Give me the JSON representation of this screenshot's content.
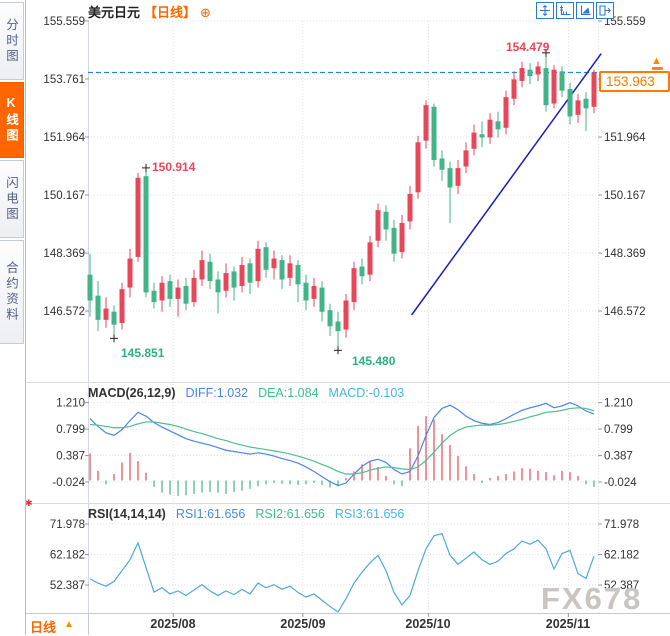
{
  "header": {
    "symbol": "美元日元",
    "period_tag": "【日线】",
    "add_icon": "⊕"
  },
  "sidebar": {
    "tabs": [
      {
        "label": "分时图",
        "active": false
      },
      {
        "label": "K线图",
        "active": true
      },
      {
        "label": "闪电图",
        "active": false
      },
      {
        "label": "合约资料",
        "active": false
      }
    ]
  },
  "toolbar": {
    "icons": [
      "crosshair",
      "axis-scale",
      "chart-zoom",
      "exit"
    ]
  },
  "price_badge": {
    "value": "153.963",
    "arrow": "▲"
  },
  "annotations": {
    "high_aug": "150.914",
    "low_aug": "145.851",
    "low_oct": "145.480",
    "high_nov": "154.479"
  },
  "macd_header": {
    "name": "MACD(26,12,9)",
    "diff": "DIFF:1.032",
    "dea": "DEA:1.084",
    "macd": "MACD:-0.103"
  },
  "rsi_header": {
    "name": "RSI(14,14,14)",
    "rsi1": "RSI1:61.656",
    "rsi2": "RSI2:61.656",
    "rsi3": "RSI3:61.656"
  },
  "footer": {
    "period_label": "日线",
    "expand_icon": "▲",
    "watermark": "FX678"
  },
  "colors": {
    "up": "#e8475a",
    "down": "#43b388",
    "orange": "#ff6600",
    "dashed_price_line": "#1f87e8",
    "trendline": "#1d1dc0",
    "diff_line": "#4a86e8",
    "dea_line": "#4fbe92",
    "rsi_line": "#4fa8dc",
    "grid": "#dbe0ea",
    "axis_text": "#333333",
    "annotation_high": "#e8475a",
    "annotation_low": "#2fae85",
    "watermark": "#c9c5c0",
    "sidebar_active_bg": "#ff6600"
  },
  "chart_data": [
    {
      "type": "candlestick",
      "title": "美元日元 日线",
      "x_labels": [
        "2025/08",
        "2025/09",
        "2025/10",
        "2025/11"
      ],
      "y_ticks": [
        "155.559",
        "153.761",
        "151.964",
        "150.167",
        "148.369",
        "146.572"
      ],
      "current_price": 153.963,
      "open": [
        147.7,
        147.05,
        146.3,
        146.55,
        146.2,
        147.3,
        148.25,
        150.75,
        147.2,
        146.9,
        147.5,
        146.95,
        147.35,
        146.85,
        147.55,
        148.1,
        147.55,
        147.2,
        147.8,
        147.35,
        148.05,
        147.5,
        148.55,
        147.9,
        148.15,
        147.6,
        148.0,
        147.45,
        146.95,
        147.3,
        146.6,
        146.25,
        146.0,
        146.85,
        147.95,
        147.7,
        148.75,
        149.65,
        149.15,
        148.4,
        149.35,
        150.25,
        151.85,
        152.9,
        151.3,
        151.0,
        150.45,
        151.05,
        151.6,
        152.05,
        151.95,
        152.45,
        152.25,
        153.15,
        153.7,
        154.05,
        153.9,
        154.1,
        153.0,
        154.0,
        153.45,
        152.65,
        153.15,
        152.9
      ],
      "close": [
        146.9,
        146.3,
        146.65,
        146.15,
        147.25,
        148.2,
        150.7,
        147.15,
        146.85,
        147.45,
        146.95,
        147.3,
        146.8,
        147.6,
        148.15,
        147.5,
        147.15,
        147.75,
        147.3,
        148.0,
        147.45,
        148.5,
        147.85,
        148.2,
        147.55,
        148.05,
        147.4,
        146.9,
        147.35,
        146.55,
        146.1,
        145.95,
        146.9,
        147.9,
        147.65,
        148.7,
        149.7,
        149.1,
        148.35,
        149.3,
        150.2,
        151.8,
        152.95,
        151.25,
        150.95,
        150.4,
        151.0,
        151.55,
        152.1,
        151.95,
        152.5,
        152.2,
        153.2,
        153.75,
        154.1,
        153.85,
        154.15,
        152.95,
        154.05,
        153.4,
        152.6,
        153.1,
        152.85,
        153.963
      ],
      "high": [
        148.35,
        147.5,
        147.0,
        146.75,
        147.45,
        148.5,
        150.85,
        150.914,
        147.45,
        147.65,
        147.7,
        147.55,
        147.6,
        147.85,
        148.45,
        148.35,
        147.8,
        148.05,
        147.95,
        148.25,
        148.2,
        148.75,
        148.7,
        148.45,
        148.3,
        148.3,
        148.15,
        147.7,
        147.6,
        147.5,
        146.8,
        146.55,
        147.1,
        148.1,
        148.2,
        148.9,
        149.9,
        149.85,
        149.4,
        149.55,
        150.45,
        152.0,
        153.1,
        153.0,
        151.55,
        151.2,
        151.25,
        151.8,
        152.35,
        152.45,
        152.7,
        152.75,
        153.4,
        154.0,
        154.3,
        154.25,
        154.3,
        154.479,
        154.2,
        154.15,
        153.65,
        153.3,
        153.35,
        154.05
      ],
      "low": [
        146.4,
        145.95,
        146.05,
        145.851,
        146.0,
        147.0,
        148.1,
        147.0,
        146.65,
        146.55,
        146.7,
        146.4,
        146.6,
        146.7,
        147.35,
        147.25,
        146.5,
        147.0,
        146.9,
        147.15,
        147.1,
        147.3,
        147.6,
        147.55,
        147.25,
        147.35,
        146.85,
        146.6,
        146.7,
        146.25,
        145.8,
        145.48,
        145.75,
        146.6,
        147.4,
        147.5,
        148.55,
        148.75,
        148.1,
        148.2,
        149.1,
        150.05,
        151.6,
        151.05,
        150.6,
        149.3,
        150.2,
        150.85,
        151.4,
        151.65,
        151.75,
        151.95,
        152.05,
        152.95,
        153.5,
        153.6,
        153.7,
        152.75,
        152.85,
        153.2,
        152.35,
        152.4,
        152.15,
        152.7
      ],
      "marks": [
        {
          "index": 3,
          "price": 145.851,
          "dir": "low"
        },
        {
          "index": 7,
          "price": 150.914,
          "dir": "high"
        },
        {
          "index": 31,
          "price": 145.48,
          "dir": "low"
        },
        {
          "index": 57,
          "price": 154.479,
          "dir": "high"
        }
      ],
      "trendline": {
        "from_index": 40.2,
        "from_price": 146.45,
        "to_index": 63.9,
        "to_price": 154.55
      }
    },
    {
      "type": "macd",
      "params": "26,12,9",
      "y_ticks": [
        "1.210",
        "0.799",
        "0.387",
        "-0.024"
      ],
      "current": {
        "diff": 1.032,
        "dea": 1.084,
        "macd": -0.103
      },
      "diff": [
        0.96,
        0.84,
        0.74,
        0.7,
        0.79,
        0.93,
        1.06,
        1.0,
        0.9,
        0.83,
        0.77,
        0.71,
        0.65,
        0.61,
        0.58,
        0.55,
        0.51,
        0.47,
        0.45,
        0.43,
        0.41,
        0.43,
        0.41,
        0.38,
        0.34,
        0.31,
        0.27,
        0.21,
        0.14,
        0.06,
        -0.02,
        -0.08,
        -0.04,
        0.1,
        0.22,
        0.3,
        0.33,
        0.28,
        0.17,
        0.1,
        0.14,
        0.38,
        0.7,
        0.98,
        1.12,
        1.17,
        1.1,
        1.0,
        0.93,
        0.89,
        0.87,
        0.9,
        0.96,
        1.03,
        1.09,
        1.13,
        1.16,
        1.2,
        1.13,
        1.16,
        1.21,
        1.16,
        1.08,
        1.032
      ],
      "dea": [
        0.87,
        0.86,
        0.84,
        0.82,
        0.82,
        0.84,
        0.88,
        0.91,
        0.91,
        0.89,
        0.87,
        0.84,
        0.8,
        0.76,
        0.73,
        0.69,
        0.65,
        0.62,
        0.58,
        0.55,
        0.52,
        0.5,
        0.48,
        0.46,
        0.44,
        0.41,
        0.38,
        0.34,
        0.3,
        0.25,
        0.2,
        0.14,
        0.1,
        0.1,
        0.12,
        0.16,
        0.19,
        0.21,
        0.2,
        0.18,
        0.17,
        0.21,
        0.31,
        0.44,
        0.58,
        0.7,
        0.78,
        0.83,
        0.85,
        0.86,
        0.86,
        0.87,
        0.89,
        0.92,
        0.95,
        0.99,
        1.02,
        1.06,
        1.07,
        1.09,
        1.12,
        1.13,
        1.12,
        1.084
      ],
      "hist": [
        0.42,
        0.15,
        -0.06,
        0.1,
        0.28,
        0.43,
        0.3,
        0.12,
        -0.1,
        -0.19,
        -0.22,
        -0.24,
        -0.23,
        -0.21,
        -0.19,
        -0.18,
        -0.19,
        -0.21,
        -0.18,
        -0.16,
        -0.13,
        -0.09,
        -0.06,
        -0.04,
        -0.05,
        -0.06,
        -0.07,
        -0.06,
        -0.04,
        -0.07,
        -0.11,
        -0.09,
        0.04,
        0.14,
        0.25,
        0.3,
        0.21,
        0.07,
        -0.06,
        -0.09,
        0.5,
        0.85,
        1.0,
        0.95,
        0.72,
        0.55,
        0.38,
        0.22,
        0.1,
        -0.04,
        0.04,
        0.07,
        0.1,
        0.14,
        0.19,
        0.18,
        0.15,
        0.13,
        0.08,
        0.15,
        0.13,
        0.07,
        -0.06,
        -0.103
      ]
    },
    {
      "type": "rsi",
      "params": "14,14,14",
      "y_ticks": [
        "71.978",
        "62.182",
        "52.387"
      ],
      "current": {
        "rsi1": 61.656,
        "rsi2": 61.656,
        "rsi3": 61.656
      },
      "rsi": [
        54.4,
        53.0,
        52.0,
        53.5,
        57.0,
        60.5,
        65.9,
        58.0,
        50.1,
        51.5,
        49.5,
        50.5,
        49.0,
        50.8,
        52.5,
        50.5,
        49.0,
        50.5,
        49.3,
        51.0,
        49.5,
        53.0,
        51.5,
        52.5,
        51.0,
        52.0,
        50.0,
        48.5,
        49.5,
        47.5,
        45.5,
        43.7,
        48.0,
        53.0,
        56.5,
        59.5,
        61.9,
        57.0,
        50.0,
        46.0,
        49.0,
        57.0,
        64.0,
        68.2,
        68.9,
        62.0,
        59.0,
        61.0,
        63.0,
        60.5,
        59.0,
        60.0,
        62.5,
        64.0,
        66.5,
        65.5,
        66.8,
        64.0,
        57.5,
        62.5,
        63.5,
        56.0,
        54.5,
        61.656
      ]
    }
  ]
}
